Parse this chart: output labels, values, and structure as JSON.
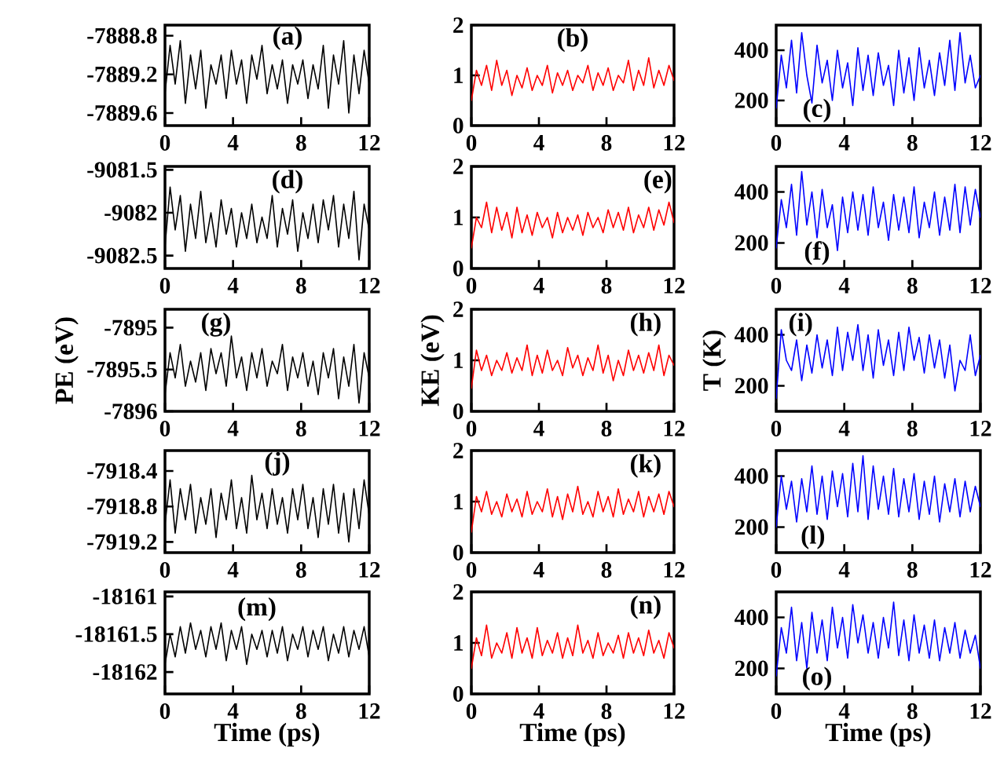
{
  "chart_data": [
    {
      "type": "line",
      "xlim": [
        0,
        12
      ],
      "xticks": [
        0,
        4,
        8,
        12
      ],
      "ylim": [
        -7889.73,
        -7888.69
      ],
      "yticks": [
        -7888.8,
        -7889.2,
        -7889.6
      ],
      "annotations": [
        "(a)"
      ],
      "x": [
        0,
        0.3,
        0.6,
        0.9,
        1.2,
        1.5,
        1.8,
        2.1,
        2.4,
        2.7,
        3,
        3.3,
        3.6,
        3.9,
        4.2,
        4.5,
        4.8,
        5.1,
        5.4,
        5.7,
        6,
        6.3,
        6.6,
        6.9,
        7.2,
        7.5,
        7.8,
        8.1,
        8.4,
        8.7,
        9,
        9.3,
        9.6,
        9.9,
        10.2,
        10.5,
        10.8,
        11.1,
        11.4,
        11.7,
        12
      ],
      "series": [
        {
          "color": "#000000",
          "values": [
            -7889.4,
            -7888.9,
            -7889.3,
            -7888.85,
            -7889.5,
            -7889.0,
            -7889.35,
            -7888.95,
            -7889.55,
            -7889.1,
            -7889.3,
            -7889.0,
            -7889.45,
            -7888.95,
            -7889.3,
            -7889.05,
            -7889.5,
            -7889.0,
            -7889.25,
            -7888.9,
            -7889.4,
            -7889.1,
            -7889.35,
            -7889.05,
            -7889.5,
            -7889.1,
            -7889.3,
            -7889.05,
            -7889.45,
            -7889.1,
            -7889.35,
            -7888.9,
            -7889.55,
            -7889.0,
            -7889.3,
            -7888.85,
            -7889.6,
            -7889.0,
            -7889.4,
            -7888.95,
            -7889.3
          ]
        }
      ]
    },
    {
      "type": "line",
      "xlim": [
        0,
        12
      ],
      "xticks": [
        0,
        4,
        8,
        12
      ],
      "ylim": [
        0,
        2
      ],
      "yticks": [
        0,
        1,
        2
      ],
      "annotations": [
        "(b)"
      ],
      "x": [
        0,
        0.3,
        0.6,
        0.9,
        1.2,
        1.5,
        1.8,
        2.1,
        2.4,
        2.7,
        3,
        3.3,
        3.6,
        3.9,
        4.2,
        4.5,
        4.8,
        5.1,
        5.4,
        5.7,
        6,
        6.3,
        6.6,
        6.9,
        7.2,
        7.5,
        7.8,
        8.1,
        8.4,
        8.7,
        9,
        9.3,
        9.6,
        9.9,
        10.2,
        10.5,
        10.8,
        11.1,
        11.4,
        11.7,
        12
      ],
      "series": [
        {
          "color": "#ff0000",
          "values": [
            0.5,
            1.1,
            0.8,
            1.2,
            0.7,
            1.3,
            0.8,
            1.1,
            0.6,
            1.0,
            0.75,
            1.15,
            0.7,
            1.0,
            0.8,
            1.2,
            0.65,
            1.05,
            0.8,
            1.1,
            0.7,
            1.0,
            0.85,
            1.2,
            0.7,
            1.05,
            0.8,
            1.15,
            0.7,
            1.0,
            0.85,
            1.3,
            0.7,
            1.1,
            0.8,
            1.35,
            0.75,
            1.1,
            0.8,
            1.2,
            0.9
          ]
        }
      ]
    },
    {
      "type": "line",
      "xlim": [
        0,
        12
      ],
      "xticks": [
        0,
        4,
        8,
        12
      ],
      "ylim": [
        100,
        500
      ],
      "yticks": [
        200,
        400
      ],
      "annotations": [
        "(c)"
      ],
      "x": [
        0,
        0.3,
        0.6,
        0.9,
        1.2,
        1.5,
        1.8,
        2.1,
        2.4,
        2.7,
        3,
        3.3,
        3.6,
        3.9,
        4.2,
        4.5,
        4.8,
        5.1,
        5.4,
        5.7,
        6,
        6.3,
        6.6,
        6.9,
        7.2,
        7.5,
        7.8,
        8.1,
        8.4,
        8.7,
        9,
        9.3,
        9.6,
        9.9,
        10.2,
        10.5,
        10.8,
        11.1,
        11.4,
        11.7,
        12
      ],
      "series": [
        {
          "color": "#0000ff",
          "values": [
            170,
            380,
            250,
            440,
            230,
            470,
            300,
            190,
            420,
            270,
            360,
            200,
            400,
            250,
            350,
            180,
            410,
            240,
            380,
            220,
            390,
            260,
            340,
            180,
            400,
            230,
            370,
            200,
            410,
            250,
            360,
            220,
            390,
            260,
            440,
            240,
            470,
            270,
            380,
            250,
            300
          ]
        }
      ]
    },
    {
      "type": "line",
      "xlim": [
        0,
        12
      ],
      "xticks": [
        0,
        4,
        8,
        12
      ],
      "ylim": [
        -9082.65,
        -9081.46
      ],
      "yticks": [
        -9081.5,
        -9082,
        -9082.5
      ],
      "annotations": [
        "(d)"
      ],
      "x": [
        0,
        0.3,
        0.6,
        0.9,
        1.2,
        1.5,
        1.8,
        2.1,
        2.4,
        2.7,
        3,
        3.3,
        3.6,
        3.9,
        4.2,
        4.5,
        4.8,
        5.1,
        5.4,
        5.7,
        6,
        6.3,
        6.6,
        6.9,
        7.2,
        7.5,
        7.8,
        8.1,
        8.4,
        8.7,
        9,
        9.3,
        9.6,
        9.9,
        10.2,
        10.5,
        10.8,
        11.1,
        11.4,
        11.7,
        12
      ],
      "series": [
        {
          "color": "#000000",
          "values": [
            -9082.4,
            -9081.7,
            -9082.2,
            -9081.8,
            -9082.45,
            -9081.9,
            -9082.3,
            -9081.75,
            -9082.35,
            -9082.0,
            -9082.4,
            -9081.85,
            -9082.25,
            -9081.95,
            -9082.4,
            -9082.0,
            -9082.3,
            -9081.9,
            -9082.35,
            -9082.05,
            -9082.3,
            -9081.8,
            -9082.4,
            -9081.95,
            -9082.25,
            -9081.85,
            -9082.45,
            -9082.0,
            -9082.3,
            -9081.9,
            -9082.35,
            -9081.85,
            -9082.2,
            -9081.8,
            -9082.4,
            -9081.9,
            -9082.3,
            -9081.75,
            -9082.55,
            -9081.9,
            -9082.2
          ]
        }
      ]
    },
    {
      "type": "line",
      "xlim": [
        0,
        12
      ],
      "xticks": [
        0,
        4,
        8,
        12
      ],
      "ylim": [
        0,
        2
      ],
      "yticks": [
        0,
        1,
        2
      ],
      "annotations": [
        "(e)"
      ],
      "x": [
        0,
        0.3,
        0.6,
        0.9,
        1.2,
        1.5,
        1.8,
        2.1,
        2.4,
        2.7,
        3,
        3.3,
        3.6,
        3.9,
        4.2,
        4.5,
        4.8,
        5.1,
        5.4,
        5.7,
        6,
        6.3,
        6.6,
        6.9,
        7.2,
        7.5,
        7.8,
        8.1,
        8.4,
        8.7,
        9,
        9.3,
        9.6,
        9.9,
        10.2,
        10.5,
        10.8,
        11.1,
        11.4,
        11.7,
        12
      ],
      "series": [
        {
          "color": "#ff0000",
          "values": [
            0.4,
            1.0,
            0.8,
            1.3,
            0.7,
            1.2,
            0.75,
            1.1,
            0.6,
            1.2,
            0.7,
            1.05,
            0.65,
            1.1,
            0.8,
            1.0,
            0.6,
            1.1,
            0.7,
            1.0,
            0.75,
            1.05,
            0.65,
            1.1,
            0.8,
            1.0,
            0.7,
            1.15,
            0.8,
            1.1,
            0.75,
            1.2,
            0.7,
            1.05,
            0.8,
            1.2,
            0.75,
            1.15,
            0.85,
            1.3,
            0.9
          ]
        }
      ]
    },
    {
      "type": "line",
      "xlim": [
        0,
        12
      ],
      "xticks": [
        0,
        4,
        8,
        12
      ],
      "ylim": [
        100,
        500
      ],
      "yticks": [
        200,
        400
      ],
      "annotations": [
        "(f)"
      ],
      "x": [
        0,
        0.3,
        0.6,
        0.9,
        1.2,
        1.5,
        1.8,
        2.1,
        2.4,
        2.7,
        3,
        3.3,
        3.6,
        3.9,
        4.2,
        4.5,
        4.8,
        5.1,
        5.4,
        5.7,
        6,
        6.3,
        6.6,
        6.9,
        7.2,
        7.5,
        7.8,
        8.1,
        8.4,
        8.7,
        9,
        9.3,
        9.6,
        9.9,
        10.2,
        10.5,
        10.8,
        11.1,
        11.4,
        11.7,
        12
      ],
      "series": [
        {
          "color": "#0000ff",
          "values": [
            180,
            370,
            260,
            430,
            230,
            480,
            270,
            400,
            220,
            410,
            260,
            350,
            170,
            380,
            240,
            400,
            250,
            390,
            230,
            420,
            260,
            360,
            210,
            390,
            250,
            380,
            240,
            420,
            220,
            360,
            260,
            400,
            230,
            380,
            250,
            430,
            240,
            420,
            270,
            410,
            300
          ]
        }
      ]
    },
    {
      "type": "line",
      "xlim": [
        0,
        12
      ],
      "xticks": [
        0,
        4,
        8,
        12
      ],
      "ylim": [
        -7896,
        -7894.78
      ],
      "yticks": [
        -7895,
        -7895.5,
        -7896
      ],
      "ylabel": "PE (eV)",
      "annotations": [
        "(g)"
      ],
      "x": [
        0,
        0.3,
        0.6,
        0.9,
        1.2,
        1.5,
        1.8,
        2.1,
        2.4,
        2.7,
        3,
        3.3,
        3.6,
        3.9,
        4.2,
        4.5,
        4.8,
        5.1,
        5.4,
        5.7,
        6,
        6.3,
        6.6,
        6.9,
        7.2,
        7.5,
        7.8,
        8.1,
        8.4,
        8.7,
        9,
        9.3,
        9.6,
        9.9,
        10.2,
        10.5,
        10.8,
        11.1,
        11.4,
        11.7,
        12
      ],
      "series": [
        {
          "color": "#000000",
          "values": [
            -7895.8,
            -7895.3,
            -7895.6,
            -7895.2,
            -7895.7,
            -7895.4,
            -7895.65,
            -7895.3,
            -7895.75,
            -7895.25,
            -7895.55,
            -7895.3,
            -7895.7,
            -7895.1,
            -7895.6,
            -7895.35,
            -7895.75,
            -7895.3,
            -7895.6,
            -7895.25,
            -7895.7,
            -7895.4,
            -7895.55,
            -7895.2,
            -7895.75,
            -7895.35,
            -7895.6,
            -7895.3,
            -7895.7,
            -7895.4,
            -7895.8,
            -7895.3,
            -7895.6,
            -7895.25,
            -7895.85,
            -7895.35,
            -7895.7,
            -7895.2,
            -7895.9,
            -7895.3,
            -7895.6
          ]
        }
      ]
    },
    {
      "type": "line",
      "xlim": [
        0,
        12
      ],
      "xticks": [
        0,
        4,
        8,
        12
      ],
      "ylim": [
        0,
        2
      ],
      "yticks": [
        0,
        1,
        2
      ],
      "ylabel": "KE (eV)",
      "annotations": [
        "(h)"
      ],
      "x": [
        0,
        0.3,
        0.6,
        0.9,
        1.2,
        1.5,
        1.8,
        2.1,
        2.4,
        2.7,
        3,
        3.3,
        3.6,
        3.9,
        4.2,
        4.5,
        4.8,
        5.1,
        5.4,
        5.7,
        6,
        6.3,
        6.6,
        6.9,
        7.2,
        7.5,
        7.8,
        8.1,
        8.4,
        8.7,
        9,
        9.3,
        9.6,
        9.9,
        10.2,
        10.5,
        10.8,
        11.1,
        11.4,
        11.7,
        12
      ],
      "series": [
        {
          "color": "#ff0000",
          "values": [
            0.45,
            1.2,
            0.8,
            1.1,
            0.7,
            1.0,
            0.8,
            1.15,
            0.75,
            1.05,
            0.8,
            1.3,
            0.7,
            1.1,
            0.75,
            1.2,
            0.8,
            1.0,
            0.7,
            1.25,
            0.85,
            1.1,
            0.7,
            1.05,
            0.8,
            1.3,
            0.75,
            1.1,
            0.6,
            1.0,
            0.7,
            1.2,
            0.8,
            1.1,
            0.75,
            1.15,
            0.8,
            1.3,
            0.7,
            1.1,
            0.9
          ]
        }
      ]
    },
    {
      "type": "line",
      "xlim": [
        0,
        12
      ],
      "xticks": [
        0,
        4,
        8,
        12
      ],
      "ylim": [
        100,
        500
      ],
      "yticks": [
        200,
        400
      ],
      "ylabel": "T (K)",
      "annotations": [
        "(i)"
      ],
      "x": [
        0,
        0.3,
        0.6,
        0.9,
        1.2,
        1.5,
        1.8,
        2.1,
        2.4,
        2.7,
        3,
        3.3,
        3.6,
        3.9,
        4.2,
        4.5,
        4.8,
        5.1,
        5.4,
        5.7,
        6,
        6.3,
        6.6,
        6.9,
        7.2,
        7.5,
        7.8,
        8.1,
        8.4,
        8.7,
        9,
        9.3,
        9.6,
        9.9,
        10.2,
        10.5,
        10.8,
        11.1,
        11.4,
        11.7,
        12
      ],
      "series": [
        {
          "color": "#0000ff",
          "values": [
            150,
            420,
            300,
            260,
            380,
            220,
            360,
            250,
            400,
            270,
            380,
            240,
            430,
            260,
            410,
            300,
            440,
            260,
            400,
            230,
            420,
            280,
            380,
            240,
            410,
            260,
            430,
            300,
            390,
            250,
            400,
            270,
            380,
            230,
            360,
            180,
            300,
            260,
            400,
            240,
            320
          ]
        }
      ]
    },
    {
      "type": "line",
      "xlim": [
        0,
        12
      ],
      "xticks": [
        0,
        4,
        8,
        12
      ],
      "ylim": [
        -7919.32,
        -7918.17
      ],
      "yticks": [
        -7918.4,
        -7918.8,
        -7919.2
      ],
      "annotations": [
        "(j)"
      ],
      "x": [
        0,
        0.3,
        0.6,
        0.9,
        1.2,
        1.5,
        1.8,
        2.1,
        2.4,
        2.7,
        3,
        3.3,
        3.6,
        3.9,
        4.2,
        4.5,
        4.8,
        5.1,
        5.4,
        5.7,
        6,
        6.3,
        6.6,
        6.9,
        7.2,
        7.5,
        7.8,
        8.1,
        8.4,
        8.7,
        9,
        9.3,
        9.6,
        9.9,
        10.2,
        10.5,
        10.8,
        11.1,
        11.4,
        11.7,
        12
      ],
      "series": [
        {
          "color": "#000000",
          "values": [
            -7919.0,
            -7918.5,
            -7919.1,
            -7918.6,
            -7918.95,
            -7918.55,
            -7919.1,
            -7918.7,
            -7919.0,
            -7918.6,
            -7919.15,
            -7918.65,
            -7918.95,
            -7918.5,
            -7919.05,
            -7918.7,
            -7919.1,
            -7918.45,
            -7918.95,
            -7918.65,
            -7919.05,
            -7918.6,
            -7919.0,
            -7918.7,
            -7919.1,
            -7918.6,
            -7918.95,
            -7918.55,
            -7919.05,
            -7918.7,
            -7919.15,
            -7918.6,
            -7919.0,
            -7918.55,
            -7919.1,
            -7918.65,
            -7919.2,
            -7918.6,
            -7919.05,
            -7918.5,
            -7918.9
          ]
        }
      ]
    },
    {
      "type": "line",
      "xlim": [
        0,
        12
      ],
      "xticks": [
        0,
        4,
        8,
        12
      ],
      "ylim": [
        0,
        2
      ],
      "yticks": [
        0,
        1,
        2
      ],
      "annotations": [
        "(k)"
      ],
      "x": [
        0,
        0.3,
        0.6,
        0.9,
        1.2,
        1.5,
        1.8,
        2.1,
        2.4,
        2.7,
        3,
        3.3,
        3.6,
        3.9,
        4.2,
        4.5,
        4.8,
        5.1,
        5.4,
        5.7,
        6,
        6.3,
        6.6,
        6.9,
        7.2,
        7.5,
        7.8,
        8.1,
        8.4,
        8.7,
        9,
        9.3,
        9.6,
        9.9,
        10.2,
        10.5,
        10.8,
        11.1,
        11.4,
        11.7,
        12
      ],
      "series": [
        {
          "color": "#ff0000",
          "values": [
            0.4,
            1.1,
            0.8,
            1.2,
            0.75,
            1.0,
            0.7,
            1.15,
            0.8,
            1.05,
            0.7,
            1.2,
            0.75,
            1.0,
            0.8,
            1.25,
            0.7,
            1.1,
            0.65,
            1.15,
            0.8,
            1.3,
            0.75,
            1.0,
            0.7,
            1.2,
            0.8,
            1.1,
            0.7,
            1.25,
            0.75,
            1.05,
            0.8,
            1.2,
            0.7,
            1.1,
            0.8,
            1.15,
            0.75,
            1.2,
            0.9
          ]
        }
      ]
    },
    {
      "type": "line",
      "xlim": [
        0,
        12
      ],
      "xticks": [
        0,
        4,
        8,
        12
      ],
      "ylim": [
        100,
        500
      ],
      "yticks": [
        200,
        400
      ],
      "annotations": [
        "(l)"
      ],
      "x": [
        0,
        0.3,
        0.6,
        0.9,
        1.2,
        1.5,
        1.8,
        2.1,
        2.4,
        2.7,
        3,
        3.3,
        3.6,
        3.9,
        4.2,
        4.5,
        4.8,
        5.1,
        5.4,
        5.7,
        6,
        6.3,
        6.6,
        6.9,
        7.2,
        7.5,
        7.8,
        8.1,
        8.4,
        8.7,
        9,
        9.3,
        9.6,
        9.9,
        10.2,
        10.5,
        10.8,
        11.1,
        11.4,
        11.7,
        12
      ],
      "series": [
        {
          "color": "#0000ff",
          "values": [
            200,
            400,
            270,
            380,
            220,
            390,
            260,
            440,
            250,
            400,
            230,
            420,
            280,
            410,
            240,
            450,
            260,
            480,
            230,
            440,
            270,
            400,
            250,
            430,
            240,
            390,
            260,
            410,
            230,
            380,
            250,
            400,
            220,
            370,
            260,
            390,
            240,
            380,
            260,
            360,
            280
          ]
        }
      ]
    },
    {
      "type": "line",
      "xlim": [
        0,
        12
      ],
      "xticks": [
        0,
        4,
        8,
        12
      ],
      "ylim": [
        -18162.29,
        -18160.94
      ],
      "yticks": [
        -18161,
        -18161.5,
        -18162
      ],
      "xlabel": "Time (ps)",
      "annotations": [
        "(m)"
      ],
      "x": [
        0,
        0.3,
        0.6,
        0.9,
        1.2,
        1.5,
        1.8,
        2.1,
        2.4,
        2.7,
        3,
        3.3,
        3.6,
        3.9,
        4.2,
        4.5,
        4.8,
        5.1,
        5.4,
        5.7,
        6,
        6.3,
        6.6,
        6.9,
        7.2,
        7.5,
        7.8,
        8.1,
        8.4,
        8.7,
        9,
        9.3,
        9.6,
        9.9,
        10.2,
        10.5,
        10.8,
        11.1,
        11.4,
        11.7,
        12
      ],
      "series": [
        {
          "color": "#000000",
          "values": [
            -18161.9,
            -18161.5,
            -18161.8,
            -18161.4,
            -18161.75,
            -18161.35,
            -18161.7,
            -18161.45,
            -18161.8,
            -18161.4,
            -18161.7,
            -18161.35,
            -18161.85,
            -18161.45,
            -18161.7,
            -18161.4,
            -18161.9,
            -18161.5,
            -18161.7,
            -18161.45,
            -18161.8,
            -18161.45,
            -18161.75,
            -18161.4,
            -18161.85,
            -18161.5,
            -18161.7,
            -18161.4,
            -18161.8,
            -18161.45,
            -18161.7,
            -18161.4,
            -18161.85,
            -18161.5,
            -18161.75,
            -18161.4,
            -18161.8,
            -18161.45,
            -18161.7,
            -18161.4,
            -18161.8
          ]
        }
      ]
    },
    {
      "type": "line",
      "xlim": [
        0,
        12
      ],
      "xticks": [
        0,
        4,
        8,
        12
      ],
      "ylim": [
        0,
        2
      ],
      "yticks": [
        0,
        1,
        2
      ],
      "xlabel": "Time (ps)",
      "annotations": [
        "(n)"
      ],
      "x": [
        0,
        0.3,
        0.6,
        0.9,
        1.2,
        1.5,
        1.8,
        2.1,
        2.4,
        2.7,
        3,
        3.3,
        3.6,
        3.9,
        4.2,
        4.5,
        4.8,
        5.1,
        5.4,
        5.7,
        6,
        6.3,
        6.6,
        6.9,
        7.2,
        7.5,
        7.8,
        8.1,
        8.4,
        8.7,
        9,
        9.3,
        9.6,
        9.9,
        10.2,
        10.5,
        10.8,
        11.1,
        11.4,
        11.7,
        12
      ],
      "series": [
        {
          "color": "#ff0000",
          "values": [
            0.5,
            1.1,
            0.75,
            1.35,
            0.7,
            1.0,
            0.8,
            1.2,
            0.7,
            1.3,
            0.8,
            1.1,
            0.7,
            1.3,
            0.75,
            1.05,
            0.8,
            1.2,
            0.7,
            1.1,
            0.75,
            1.35,
            0.8,
            1.05,
            0.7,
            1.2,
            0.75,
            1.0,
            0.8,
            1.15,
            0.7,
            1.2,
            0.8,
            1.1,
            0.75,
            1.25,
            0.8,
            1.05,
            0.7,
            1.2,
            0.9
          ]
        }
      ]
    },
    {
      "type": "line",
      "xlim": [
        0,
        12
      ],
      "xticks": [
        0,
        4,
        8,
        12
      ],
      "ylim": [
        100,
        500
      ],
      "yticks": [
        200,
        400
      ],
      "xlabel": "Time (ps)",
      "annotations": [
        "(o)"
      ],
      "x": [
        0,
        0.3,
        0.6,
        0.9,
        1.2,
        1.5,
        1.8,
        2.1,
        2.4,
        2.7,
        3,
        3.3,
        3.6,
        3.9,
        4.2,
        4.5,
        4.8,
        5.1,
        5.4,
        5.7,
        6,
        6.3,
        6.6,
        6.9,
        7.2,
        7.5,
        7.8,
        8.1,
        8.4,
        8.7,
        9,
        9.3,
        9.6,
        9.9,
        10.2,
        10.5,
        10.8,
        11.1,
        11.4,
        11.7,
        12
      ],
      "series": [
        {
          "color": "#0000ff",
          "values": [
            170,
            360,
            260,
            440,
            230,
            380,
            200,
            420,
            260,
            390,
            230,
            440,
            280,
            400,
            240,
            450,
            300,
            410,
            260,
            380,
            240,
            400,
            280,
            460,
            250,
            390,
            230,
            410,
            260,
            370,
            240,
            390,
            230,
            360,
            260,
            380,
            240,
            350,
            260,
            330,
            200
          ]
        }
      ]
    }
  ]
}
